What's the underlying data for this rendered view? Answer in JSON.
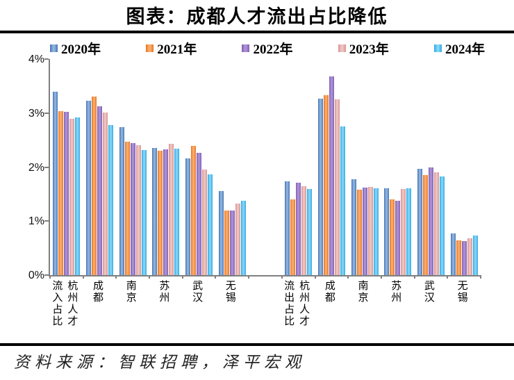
{
  "title": "图表：成都人才流出占比降低",
  "source": "资料来源：智联招聘，泽平宏观",
  "chart_data": {
    "type": "bar",
    "title": "图表：成都人才流出占比降低",
    "ylim": [
      0,
      4
    ],
    "y_ticks": [
      "0%",
      "1%",
      "2%",
      "3%",
      "4%"
    ],
    "grid": false,
    "legend_position": "top",
    "axis_color": "#7f7f7f",
    "categories": [
      "流入占比|杭州人才",
      "成都",
      "南京",
      "苏州",
      "武汉",
      "无锡",
      "",
      "流出占比|杭州人才",
      "成都",
      "南京",
      "苏州",
      "武汉",
      "无锡"
    ],
    "series": [
      {
        "name": "2020年",
        "color": "#4674B0",
        "color_light": "#8FB3E0",
        "values": [
          3.39,
          3.23,
          2.74,
          2.36,
          2.16,
          1.56,
          null,
          1.74,
          3.27,
          1.78,
          1.61,
          1.97,
          0.77
        ]
      },
      {
        "name": "2021年",
        "color": "#E8731F",
        "color_light": "#F9AC6E",
        "values": [
          3.04,
          3.3,
          2.47,
          2.3,
          2.39,
          1.19,
          null,
          1.4,
          3.33,
          1.58,
          1.4,
          1.85,
          0.64
        ]
      },
      {
        "name": "2022年",
        "color": "#7E5FB0",
        "color_light": "#AD90D6",
        "values": [
          3.02,
          3.13,
          2.45,
          2.33,
          2.26,
          1.2,
          null,
          1.71,
          3.68,
          1.62,
          1.38,
          2.0,
          0.63
        ]
      },
      {
        "name": "2023年",
        "color": "#D49391",
        "color_light": "#EFC5C4",
        "values": [
          2.9,
          3.01,
          2.4,
          2.43,
          1.96,
          1.33,
          null,
          1.65,
          3.25,
          1.64,
          1.59,
          1.91,
          0.68
        ]
      },
      {
        "name": "2024年",
        "color": "#31A8E0",
        "color_light": "#82D5F8",
        "values": [
          2.92,
          2.78,
          2.31,
          2.34,
          1.87,
          1.38,
          null,
          1.6,
          2.75,
          1.61,
          1.61,
          1.83,
          0.73
        ]
      }
    ]
  }
}
